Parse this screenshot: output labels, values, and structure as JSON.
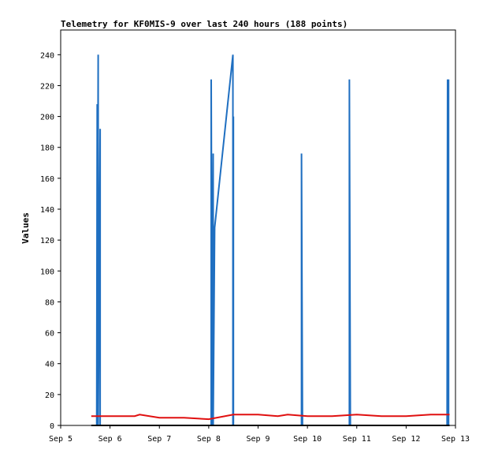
{
  "chart_data": {
    "type": "line",
    "title": "Telemetry for KF0MIS-9 over last 240 hours (188 points)",
    "ylabel": "Values",
    "xlabel": "",
    "ylim": [
      0,
      256
    ],
    "xlim": [
      0,
      8
    ],
    "y_ticks": [
      0,
      20,
      40,
      60,
      80,
      100,
      120,
      140,
      160,
      180,
      200,
      220,
      240
    ],
    "x_ticks": [
      {
        "value": 0,
        "label": "Sep 5"
      },
      {
        "value": 1,
        "label": "Sep 6"
      },
      {
        "value": 2,
        "label": "Sep 7"
      },
      {
        "value": 3,
        "label": "Sep 8"
      },
      {
        "value": 4,
        "label": "Sep 9"
      },
      {
        "value": 5,
        "label": "Sep 10"
      },
      {
        "value": 6,
        "label": "Sep 11"
      },
      {
        "value": 7,
        "label": "Sep 12"
      },
      {
        "value": 8,
        "label": "Sep 13"
      }
    ],
    "grid": false,
    "colors": {
      "blue": "#1f6fc1",
      "red": "#e01010",
      "black": "#000000"
    },
    "series": [
      {
        "color": "#1f6fc1",
        "x": [
          0.62,
          0.73,
          0.74,
          0.74,
          0.76,
          0.76,
          0.8,
          0.8,
          0.82,
          0.83,
          1.0,
          1.2,
          1.4,
          1.6,
          1.8,
          2.0,
          2.2,
          2.4,
          2.6,
          2.8,
          3.0,
          3.05,
          3.05,
          3.07,
          3.07,
          3.07,
          3.09,
          3.09,
          3.12,
          3.49,
          3.49,
          3.5,
          3.5,
          3.52,
          3.9,
          4.2,
          4.5,
          4.88,
          4.88,
          4.9,
          5.2,
          5.5,
          5.85,
          5.85,
          5.87,
          6.2,
          6.5,
          6.8,
          7.2,
          7.5,
          7.83,
          7.84,
          7.84,
          7.86,
          7.86,
          7.88
        ],
        "y": [
          0,
          0,
          208,
          0,
          240,
          0,
          192,
          0,
          0,
          0,
          0,
          0,
          0,
          0,
          0,
          0,
          0,
          0,
          0,
          0,
          0,
          0,
          224,
          0,
          96,
          0,
          176,
          0,
          128,
          240,
          0,
          200,
          0,
          0,
          0,
          0,
          0,
          0,
          176,
          0,
          0,
          0,
          0,
          224,
          0,
          0,
          0,
          0,
          0,
          0,
          0,
          224,
          0,
          224,
          0,
          0
        ]
      },
      {
        "color": "#e01010",
        "x": [
          0.62,
          1.0,
          1.5,
          1.6,
          2.0,
          2.5,
          3.0,
          3.5,
          4.0,
          4.4,
          4.6,
          5.0,
          5.5,
          6.0,
          6.5,
          7.0,
          7.5,
          7.88
        ],
        "y": [
          6,
          6,
          6,
          7,
          5,
          5,
          4,
          7,
          7,
          6,
          7,
          6,
          6,
          7,
          6,
          6,
          7,
          7
        ]
      },
      {
        "color": "#000000",
        "x": [
          0.62,
          7.88
        ],
        "y": [
          0,
          0
        ]
      }
    ]
  }
}
